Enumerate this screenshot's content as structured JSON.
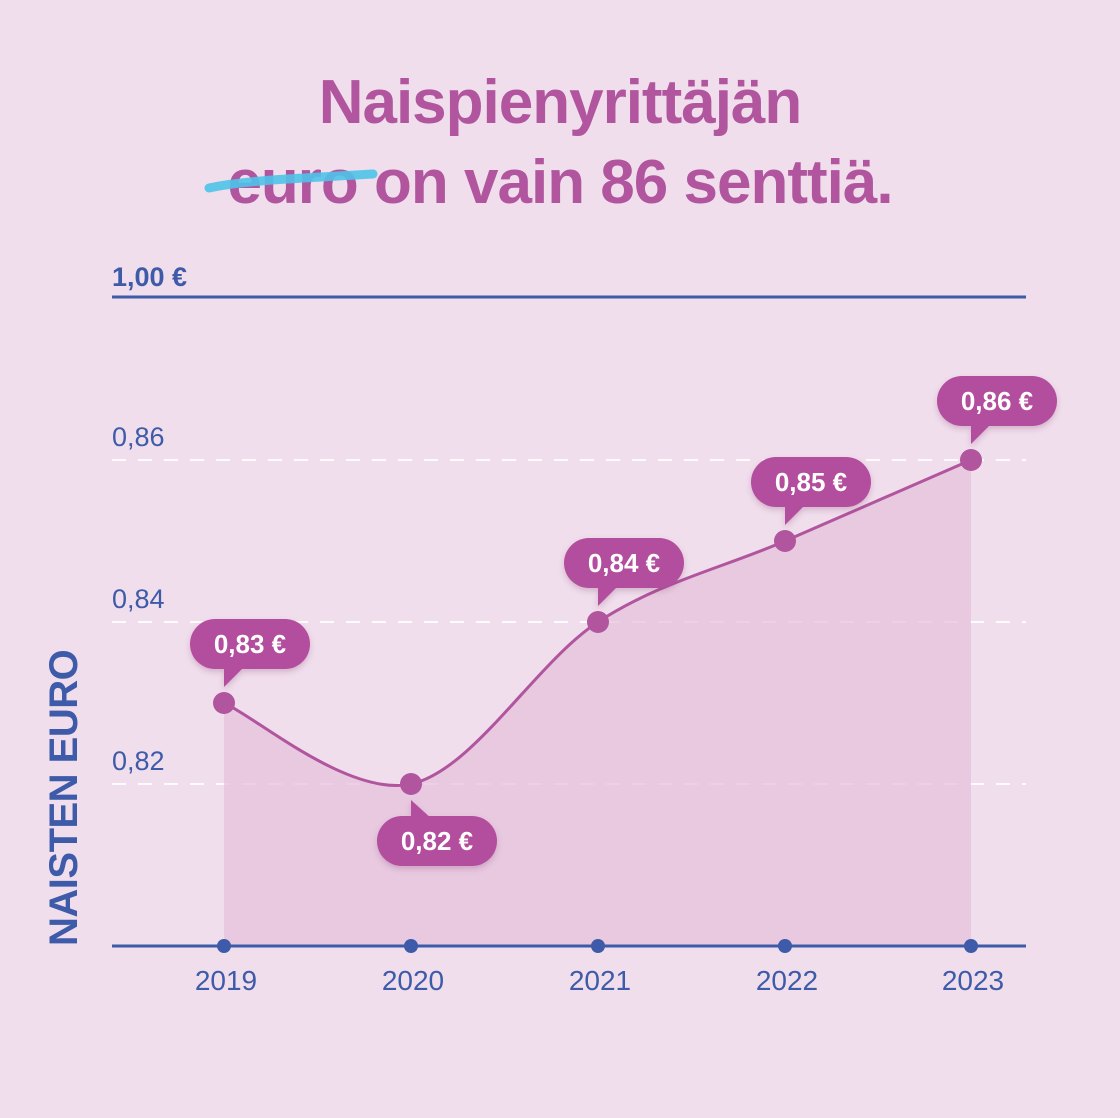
{
  "title": {
    "line1": "Naispienyrittäjän",
    "struck_word": "euro",
    "line2_rest": " on vain 86 senttiä."
  },
  "colors": {
    "background": "#f0deec",
    "accent": "#b0559e",
    "bubble": "#b34d9e",
    "axis": "#3d5ba8",
    "strike": "#4ec3e8"
  },
  "chart_data": {
    "type": "area",
    "title": "Naispienyrittäjän euro on vain 86 senttiä.",
    "xlabel": "",
    "ylabel": "NAISTEN EURO",
    "categories": [
      "2019",
      "2020",
      "2021",
      "2022",
      "2023"
    ],
    "values": [
      0.83,
      0.82,
      0.84,
      0.85,
      0.86
    ],
    "data_labels": [
      "0,83 €",
      "0,82 €",
      "0,84 €",
      "0,85 €",
      "0,86 €"
    ],
    "label_positions": [
      "above",
      "below",
      "above",
      "above",
      "above"
    ],
    "yticks": [
      0.82,
      0.84,
      0.86
    ],
    "ytick_labels": [
      "0,82",
      "0,84",
      "0,86"
    ],
    "reference_line": {
      "value": 1.0,
      "label": "1,00 €"
    },
    "ylim": [
      0.8,
      0.86
    ],
    "grid": true
  }
}
